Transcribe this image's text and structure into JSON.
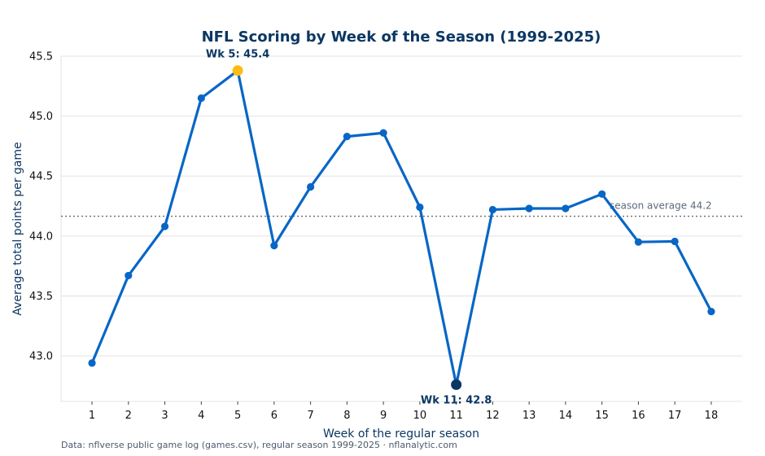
{
  "chart_data": {
    "type": "line",
    "title": "NFL Scoring by Week of the Season (1999-2025)",
    "xlabel": "Week of the regular season",
    "ylabel": "Average total points per game",
    "x": [
      1,
      2,
      3,
      4,
      5,
      6,
      7,
      8,
      9,
      10,
      11,
      12,
      13,
      14,
      15,
      16,
      17,
      18
    ],
    "series": [
      {
        "values": [
          42.94,
          43.67,
          44.08,
          45.15,
          45.38,
          43.92,
          44.41,
          44.83,
          44.86,
          44.24,
          42.76,
          44.22,
          44.23,
          44.23,
          44.35,
          43.95,
          43.955,
          43.37
        ],
        "color": "#0866c6"
      }
    ],
    "xticks": [
      "1",
      "2",
      "3",
      "4",
      "5",
      "6",
      "7",
      "8",
      "9",
      "10",
      "11",
      "12",
      "13",
      "14",
      "15",
      "16",
      "17",
      "18"
    ],
    "yticks": [
      "43.0",
      "43.5",
      "44.0",
      "44.5",
      "45.0",
      "45.5"
    ],
    "ylim": [
      42.62,
      45.5
    ],
    "xlim": [
      0.15,
      18.85
    ],
    "grid": "horizontal",
    "reference_line": {
      "value": 44.165,
      "label": "season average 44.2",
      "style": "dotted",
      "color": "#6b6b6b"
    },
    "highlights": [
      {
        "week": 5,
        "value": 45.38,
        "label": "Wk 5: 45.4",
        "color": "#fbbd12",
        "position": "above"
      },
      {
        "week": 11,
        "value": 42.76,
        "label": "Wk 11: 42.8",
        "color": "#0b3763",
        "position": "below"
      }
    ]
  },
  "source_note": "Data: nflverse public game log (games.csv), regular season 1999-2025 · nflanalytic.com"
}
